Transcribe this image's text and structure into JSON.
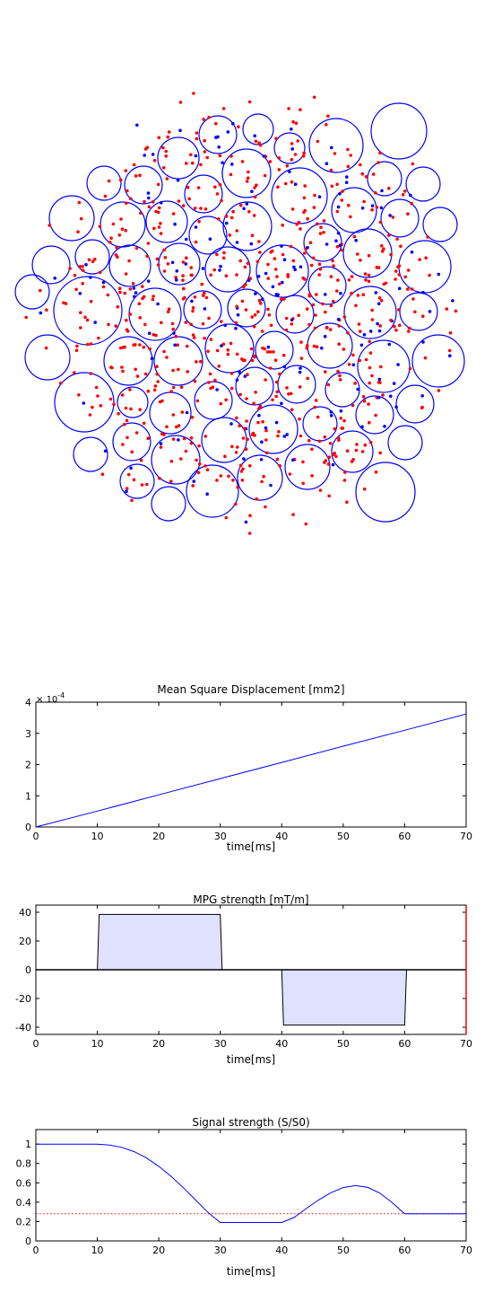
{
  "colors": {
    "circle": "#0000ff",
    "inside_particle": "#0000ff",
    "outside_particle": "#ff0000",
    "msd_line": "#0000ff",
    "mpg_fill": "#e0e0ff",
    "mpg_line": "#000000",
    "time_marker": "#ff0000",
    "signal_line": "#0000ff",
    "reference_line": "#ff0000"
  },
  "chart_data": [
    {
      "type": "scatter",
      "description_key": "particle-cloud",
      "title": "",
      "axes_visible": false,
      "circles": [
        {
          "cx": 445,
          "cy": 146,
          "r": 31
        },
        {
          "cx": 288,
          "cy": 144,
          "r": 17
        },
        {
          "cx": 243,
          "cy": 150,
          "r": 21
        },
        {
          "cx": 323,
          "cy": 165,
          "r": 17
        },
        {
          "cx": 375,
          "cy": 162,
          "r": 30
        },
        {
          "cx": 199,
          "cy": 176,
          "r": 23
        },
        {
          "cx": 275,
          "cy": 193,
          "r": 27
        },
        {
          "cx": 116,
          "cy": 204,
          "r": 19
        },
        {
          "cx": 160,
          "cy": 206,
          "r": 21
        },
        {
          "cx": 429,
          "cy": 199,
          "r": 19
        },
        {
          "cx": 472,
          "cy": 205,
          "r": 19
        },
        {
          "cx": 227,
          "cy": 216,
          "r": 21
        },
        {
          "cx": 334,
          "cy": 218,
          "r": 31
        },
        {
          "cx": 80,
          "cy": 243,
          "r": 25
        },
        {
          "cx": 137,
          "cy": 250,
          "r": 25
        },
        {
          "cx": 186,
          "cy": 247,
          "r": 23
        },
        {
          "cx": 395,
          "cy": 234,
          "r": 25
        },
        {
          "cx": 446,
          "cy": 243,
          "r": 21
        },
        {
          "cx": 491,
          "cy": 250,
          "r": 19
        },
        {
          "cx": 276,
          "cy": 252,
          "r": 27
        },
        {
          "cx": 232,
          "cy": 262,
          "r": 21
        },
        {
          "cx": 360,
          "cy": 270,
          "r": 21
        },
        {
          "cx": 103,
          "cy": 286,
          "r": 19
        },
        {
          "cx": 57,
          "cy": 295,
          "r": 21
        },
        {
          "cx": 145,
          "cy": 296,
          "r": 23
        },
        {
          "cx": 200,
          "cy": 294,
          "r": 23
        },
        {
          "cx": 254,
          "cy": 300,
          "r": 25
        },
        {
          "cx": 315,
          "cy": 302,
          "r": 29
        },
        {
          "cx": 410,
          "cy": 282,
          "r": 27
        },
        {
          "cx": 474,
          "cy": 297,
          "r": 29
        },
        {
          "cx": 98,
          "cy": 346,
          "r": 38
        },
        {
          "cx": 36,
          "cy": 325,
          "r": 19
        },
        {
          "cx": 365,
          "cy": 318,
          "r": 21
        },
        {
          "cx": 173,
          "cy": 350,
          "r": 29
        },
        {
          "cx": 226,
          "cy": 345,
          "r": 21
        },
        {
          "cx": 275,
          "cy": 343,
          "r": 21
        },
        {
          "cx": 329,
          "cy": 350,
          "r": 21
        },
        {
          "cx": 413,
          "cy": 348,
          "r": 29
        },
        {
          "cx": 467,
          "cy": 347,
          "r": 21
        },
        {
          "cx": 53,
          "cy": 398,
          "r": 25
        },
        {
          "cx": 143,
          "cy": 402,
          "r": 27
        },
        {
          "cx": 199,
          "cy": 402,
          "r": 27
        },
        {
          "cx": 256,
          "cy": 388,
          "r": 27
        },
        {
          "cx": 306,
          "cy": 390,
          "r": 21
        },
        {
          "cx": 368,
          "cy": 385,
          "r": 25
        },
        {
          "cx": 428,
          "cy": 408,
          "r": 29
        },
        {
          "cx": 489,
          "cy": 402,
          "r": 29
        },
        {
          "cx": 94,
          "cy": 448,
          "r": 33
        },
        {
          "cx": 148,
          "cy": 448,
          "r": 17
        },
        {
          "cx": 238,
          "cy": 446,
          "r": 21
        },
        {
          "cx": 284,
          "cy": 430,
          "r": 21
        },
        {
          "cx": 331,
          "cy": 428,
          "r": 21
        },
        {
          "cx": 382,
          "cy": 434,
          "r": 19
        },
        {
          "cx": 418,
          "cy": 462,
          "r": 21
        },
        {
          "cx": 463,
          "cy": 450,
          "r": 21
        },
        {
          "cx": 190,
          "cy": 460,
          "r": 23
        },
        {
          "cx": 305,
          "cy": 478,
          "r": 27
        },
        {
          "cx": 357,
          "cy": 472,
          "r": 19
        },
        {
          "cx": 147,
          "cy": 492,
          "r": 21
        },
        {
          "cx": 250,
          "cy": 490,
          "r": 25
        },
        {
          "cx": 101,
          "cy": 506,
          "r": 19
        },
        {
          "cx": 393,
          "cy": 503,
          "r": 23
        },
        {
          "cx": 452,
          "cy": 493,
          "r": 19
        },
        {
          "cx": 196,
          "cy": 512,
          "r": 27
        },
        {
          "cx": 343,
          "cy": 520,
          "r": 25
        },
        {
          "cx": 290,
          "cy": 532,
          "r": 25
        },
        {
          "cx": 153,
          "cy": 536,
          "r": 19
        },
        {
          "cx": 237,
          "cy": 547,
          "r": 29
        },
        {
          "cx": 430,
          "cy": 548,
          "r": 33
        },
        {
          "cx": 188,
          "cy": 561,
          "r": 19
        }
      ]
    },
    {
      "type": "line",
      "title": "Mean Square Displacement [mm2]",
      "xlabel": "time[ms]",
      "ylabel": "",
      "xlim": [
        0,
        70
      ],
      "ylim": [
        0,
        4
      ],
      "y_multiplier_label": "× 10^-4",
      "x_ticks": [
        0,
        10,
        20,
        30,
        40,
        50,
        60,
        70
      ],
      "y_ticks": [
        0,
        1,
        2,
        3,
        4
      ],
      "series": [
        {
          "x": [
            0,
            10,
            20,
            30,
            40,
            50,
            60,
            70
          ],
          "y": [
            0,
            0.51,
            1.03,
            1.55,
            2.07,
            2.59,
            3.1,
            3.62
          ]
        }
      ]
    },
    {
      "type": "area",
      "title": "MPG strength [mT/m]",
      "xlabel": "time[ms]",
      "ylabel": "",
      "xlim": [
        0,
        70
      ],
      "ylim": [
        -45,
        45
      ],
      "x_ticks": [
        0,
        10,
        20,
        30,
        40,
        50,
        60,
        70
      ],
      "y_ticks": [
        -40,
        -20,
        0,
        20,
        40
      ],
      "series": [
        {
          "x": [
            0,
            10,
            10.3,
            30,
            30.3,
            40,
            40.3,
            60,
            60.3,
            70
          ],
          "y": [
            0,
            0,
            38.5,
            38.5,
            0,
            0,
            -38.5,
            -38.5,
            0,
            0
          ]
        }
      ],
      "current_time_marker": 70
    },
    {
      "type": "line",
      "title": "Signal strength (S/S0)",
      "xlabel": "time[ms]",
      "ylabel": "",
      "xlim": [
        0,
        70
      ],
      "ylim": [
        0,
        1.15
      ],
      "x_ticks": [
        0,
        10,
        20,
        30,
        40,
        50,
        60,
        70
      ],
      "y_ticks": [
        0,
        0.2,
        0.4,
        0.6,
        0.8,
        1
      ],
      "series": [
        {
          "x": [
            0,
            10,
            12,
            14,
            16,
            18,
            20,
            22,
            24,
            26,
            28,
            30,
            32,
            34,
            36,
            38,
            40,
            42,
            44,
            46,
            48,
            50,
            52,
            54,
            56,
            58,
            60,
            62,
            64,
            66,
            68,
            70
          ],
          "y": [
            1,
            1,
            0.99,
            0.966,
            0.922,
            0.857,
            0.771,
            0.667,
            0.549,
            0.422,
            0.294,
            0.19,
            0.19,
            0.19,
            0.19,
            0.19,
            0.19,
            0.242,
            0.335,
            0.423,
            0.498,
            0.551,
            0.571,
            0.553,
            0.492,
            0.394,
            0.28,
            0.28,
            0.28,
            0.28,
            0.28,
            0.28
          ]
        }
      ],
      "reference_level": 0.28
    }
  ]
}
